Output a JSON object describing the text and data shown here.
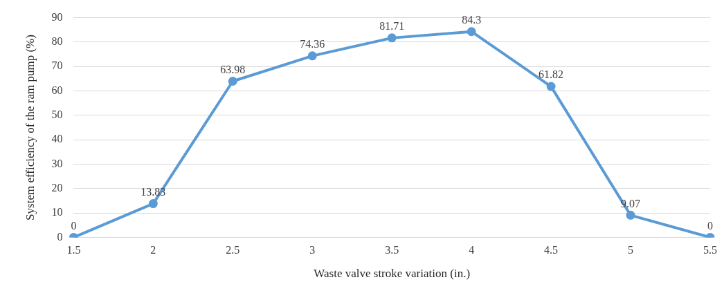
{
  "chart_data": {
    "type": "line",
    "xlabel": "Waste valve stroke variation (in.)",
    "ylabel": "System efficiency of the ram pump (%)",
    "categories": [
      "1.5",
      "2",
      "2.5",
      "3",
      "3.5",
      "4",
      "4.5",
      "5",
      "5.5"
    ],
    "series": [
      {
        "color": "#5b9bd5",
        "values": [
          0,
          13.83,
          63.98,
          74.36,
          81.71,
          84.3,
          61.82,
          9.07,
          0
        ]
      }
    ],
    "ylim": [
      0,
      90
    ],
    "yticks": [
      0,
      10,
      20,
      30,
      40,
      50,
      60,
      70,
      80,
      90
    ],
    "grid": "y",
    "marker": "circle",
    "line_style": "solid",
    "data_labels": true,
    "legend": false
  }
}
